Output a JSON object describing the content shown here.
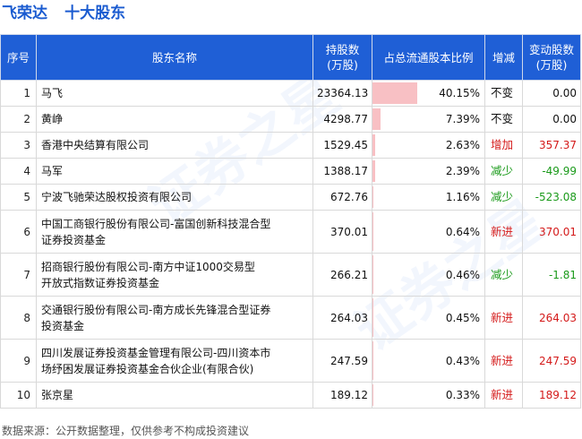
{
  "header": {
    "company": "飞荣达",
    "subtitle": "十大股东"
  },
  "table": {
    "columns": [
      "序号",
      "股东名称",
      "持股数\n(万股)",
      "占总流通股本比例",
      "增减",
      "变动股数\n(万股)"
    ],
    "columns_display": {
      "idx": "序号",
      "name": "股东名称",
      "shares_line1": "持股数",
      "shares_line2": "(万股)",
      "ratio": "占总流通股本比例",
      "change": "增减",
      "delta_line1": "变动股数",
      "delta_line2": "(万股)"
    },
    "rows": [
      {
        "idx": "1",
        "name_line1": "马飞",
        "name_line2": "",
        "shares": "23364.13",
        "ratio": "40.15%",
        "ratio_value": 40.15,
        "change": "不变",
        "change_type": "same",
        "delta": "0.00"
      },
      {
        "idx": "2",
        "name_line1": "黄峥",
        "name_line2": "",
        "shares": "4298.77",
        "ratio": "7.39%",
        "ratio_value": 7.39,
        "change": "不变",
        "change_type": "same",
        "delta": "0.00"
      },
      {
        "idx": "3",
        "name_line1": "香港中央结算有限公司",
        "name_line2": "",
        "shares": "1529.45",
        "ratio": "2.63%",
        "ratio_value": 2.63,
        "change": "增加",
        "change_type": "up",
        "delta": "357.37"
      },
      {
        "idx": "4",
        "name_line1": "马军",
        "name_line2": "",
        "shares": "1388.17",
        "ratio": "2.39%",
        "ratio_value": 2.39,
        "change": "减少",
        "change_type": "down",
        "delta": "-49.99"
      },
      {
        "idx": "5",
        "name_line1": "宁波飞驰荣达股权投资有限公司",
        "name_line2": "",
        "shares": "672.76",
        "ratio": "1.16%",
        "ratio_value": 1.16,
        "change": "减少",
        "change_type": "down",
        "delta": "-523.08"
      },
      {
        "idx": "6",
        "name_line1": "中国工商银行股份有限公司-富国创新科技混合型",
        "name_line2": "证券投资基金",
        "shares": "370.01",
        "ratio": "0.64%",
        "ratio_value": 0.64,
        "change": "新进",
        "change_type": "new",
        "delta": "370.01"
      },
      {
        "idx": "7",
        "name_line1": "招商银行股份有限公司-南方中证1000交易型",
        "name_line2": "开放式指数证券投资基金",
        "shares": "266.21",
        "ratio": "0.46%",
        "ratio_value": 0.46,
        "change": "减少",
        "change_type": "down",
        "delta": "-1.81"
      },
      {
        "idx": "8",
        "name_line1": "交通银行股份有限公司-南方成长先锋混合型证券",
        "name_line2": "投资基金",
        "shares": "264.03",
        "ratio": "0.45%",
        "ratio_value": 0.45,
        "change": "新进",
        "change_type": "new",
        "delta": "264.03"
      },
      {
        "idx": "9",
        "name_line1": "四川发展证券投资基金管理有限公司-四川资本市",
        "name_line2": "场纾困发展证券投资基金合伙企业(有限合伙)",
        "shares": "247.59",
        "ratio": "0.43%",
        "ratio_value": 0.43,
        "change": "新进",
        "change_type": "new",
        "delta": "247.59"
      },
      {
        "idx": "10",
        "name_line1": "张京星",
        "name_line2": "",
        "shares": "189.12",
        "ratio": "0.33%",
        "ratio_value": 0.33,
        "change": "新进",
        "change_type": "new",
        "delta": "189.12"
      }
    ],
    "ratio_bar_max": 100
  },
  "footer": {
    "source": "数据来源：公开数据整理，仅供参考不构成投资建议"
  },
  "colors": {
    "title": "#1a5bd0",
    "header_bg": "#1f5fd6",
    "bar": "#f8c0c4",
    "up": "#d41a1a",
    "down": "#1a9a1a"
  }
}
